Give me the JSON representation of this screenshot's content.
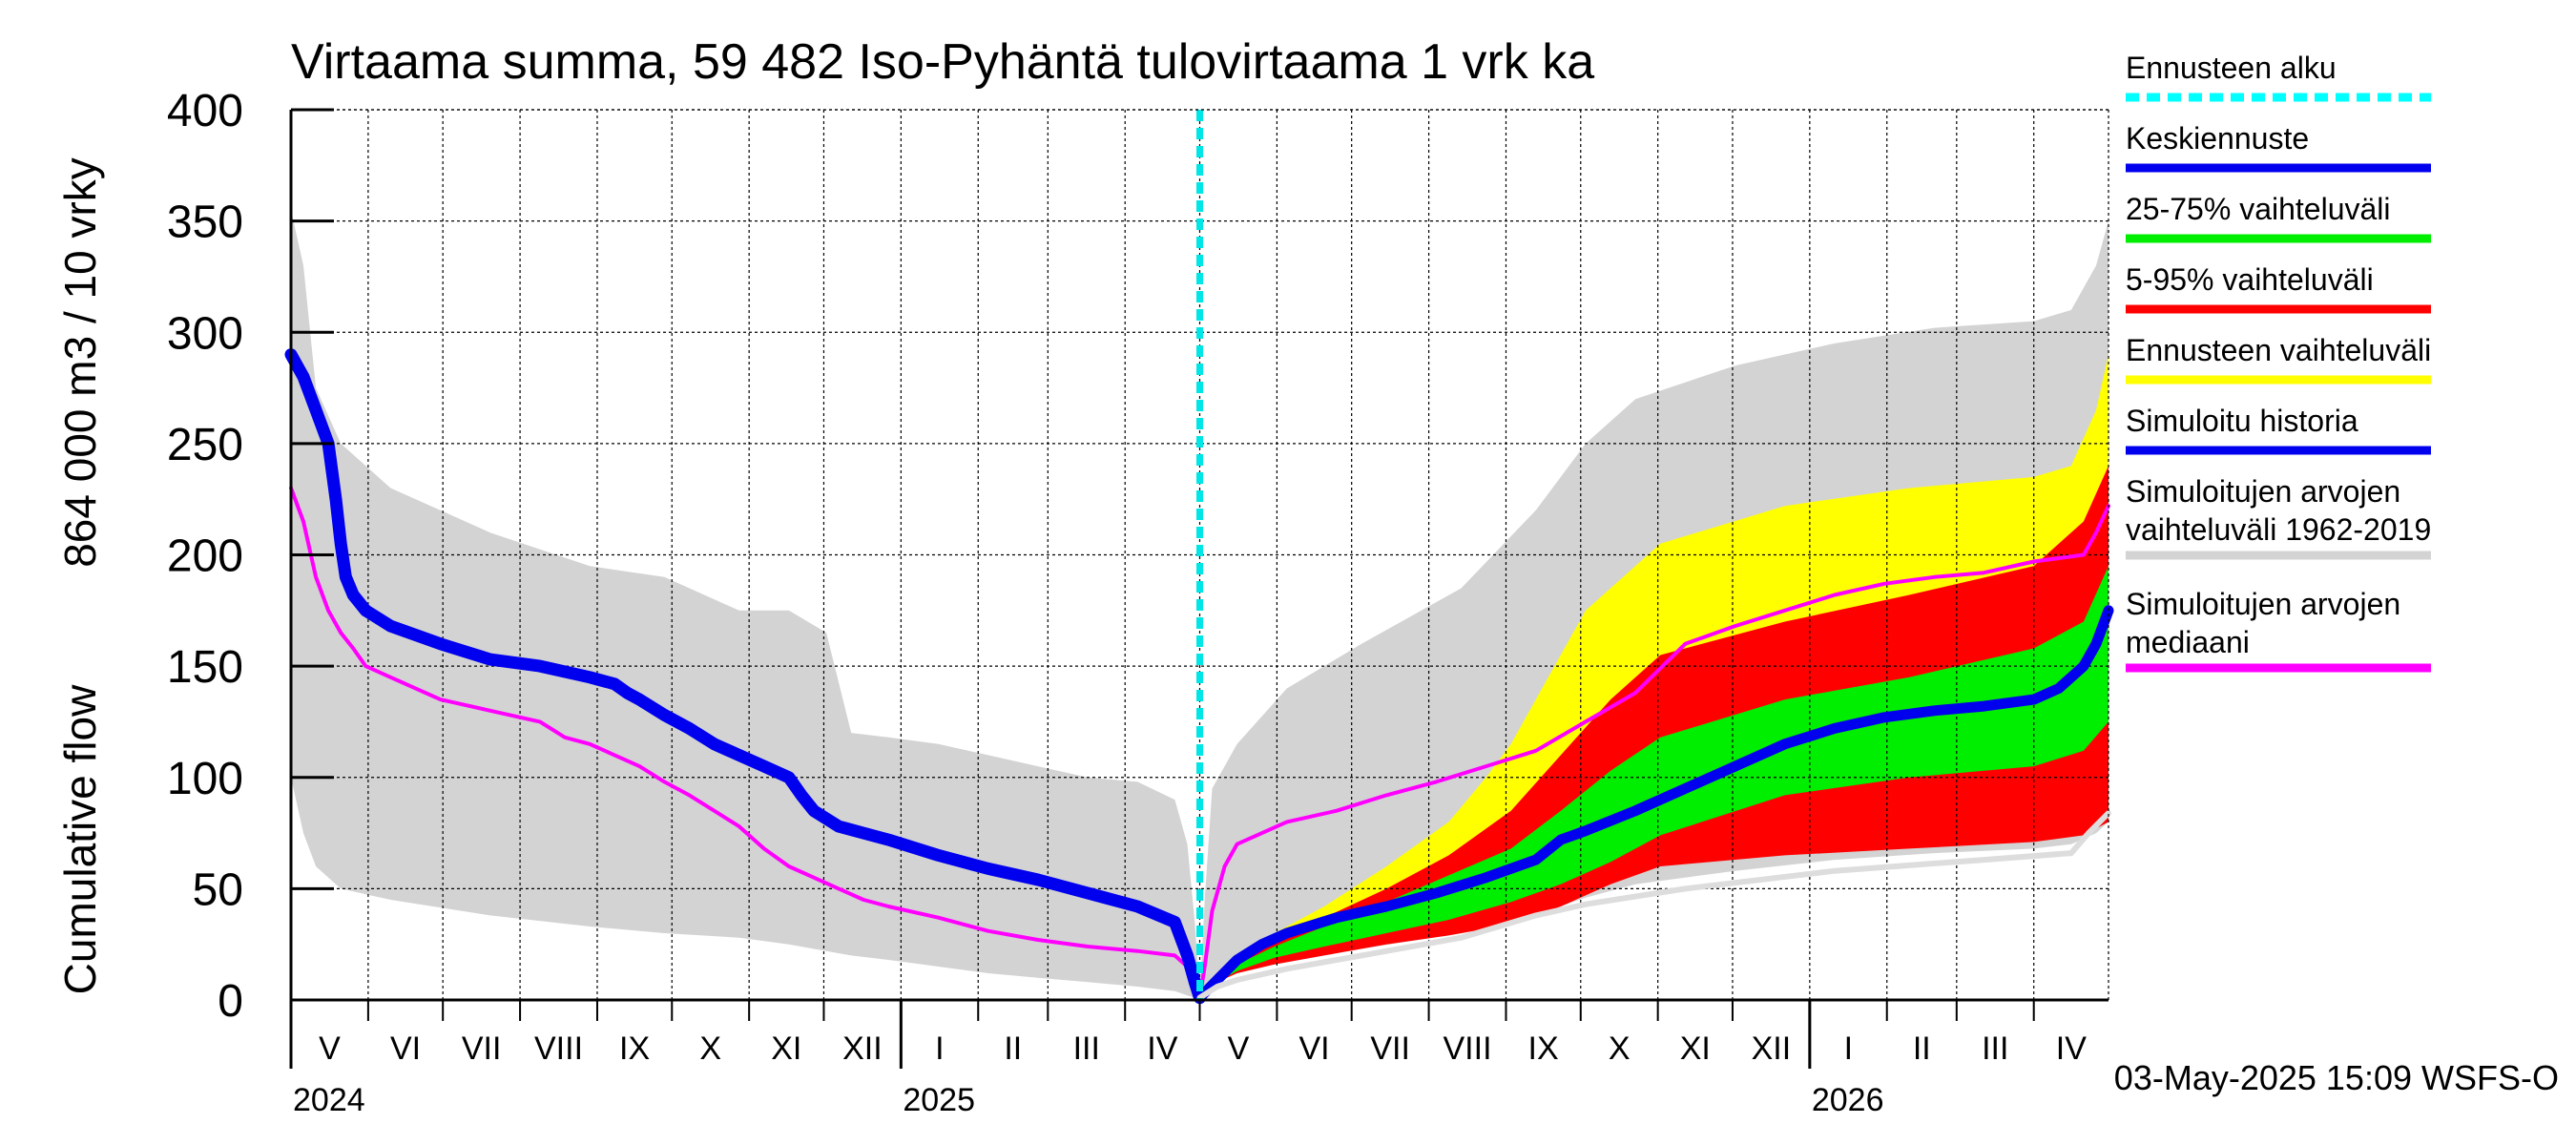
{
  "chart_data": {
    "type": "area",
    "title": "Virtaama summa, 59 482 Iso-Pyhäntä tulovirtaama 1 vrk ka",
    "ylabel_line1": "Cumulative flow",
    "ylabel_line2": "864 000 m3 / 10 vrky",
    "ylim": [
      0,
      400
    ],
    "yticks": [
      0,
      50,
      100,
      150,
      200,
      250,
      300,
      350,
      400
    ],
    "xlim_days": [
      0,
      730
    ],
    "forecast_start_day": 365,
    "months": [
      {
        "label": "V",
        "start": 0,
        "end": 31
      },
      {
        "label": "VI",
        "start": 31,
        "end": 61
      },
      {
        "label": "VII",
        "start": 61,
        "end": 92
      },
      {
        "label": "VIII",
        "start": 92,
        "end": 123
      },
      {
        "label": "IX",
        "start": 123,
        "end": 153
      },
      {
        "label": "X",
        "start": 153,
        "end": 184
      },
      {
        "label": "XI",
        "start": 184,
        "end": 214
      },
      {
        "label": "XII",
        "start": 214,
        "end": 245
      },
      {
        "label": "I",
        "start": 245,
        "end": 276
      },
      {
        "label": "II",
        "start": 276,
        "end": 304
      },
      {
        "label": "III",
        "start": 304,
        "end": 335
      },
      {
        "label": "IV",
        "start": 335,
        "end": 365
      },
      {
        "label": "V",
        "start": 365,
        "end": 396
      },
      {
        "label": "VI",
        "start": 396,
        "end": 426
      },
      {
        "label": "VII",
        "start": 426,
        "end": 457
      },
      {
        "label": "VIII",
        "start": 457,
        "end": 488
      },
      {
        "label": "IX",
        "start": 488,
        "end": 518
      },
      {
        "label": "X",
        "start": 518,
        "end": 549
      },
      {
        "label": "XI",
        "start": 549,
        "end": 579
      },
      {
        "label": "XII",
        "start": 579,
        "end": 610
      },
      {
        "label": "I",
        "start": 610,
        "end": 641
      },
      {
        "label": "II",
        "start": 641,
        "end": 669
      },
      {
        "label": "III",
        "start": 669,
        "end": 700
      },
      {
        "label": "IV",
        "start": 700,
        "end": 730
      }
    ],
    "years": [
      {
        "label": "2024",
        "day": 0
      },
      {
        "label": "2025",
        "day": 245
      },
      {
        "label": "2026",
        "day": 610
      }
    ],
    "series": [
      {
        "name": "hist_range_1",
        "kind": "band",
        "color": "#d3d3d3",
        "x": [
          0,
          5,
          10,
          20,
          40,
          80,
          120,
          150,
          180,
          200,
          215,
          225,
          240,
          260,
          280,
          300,
          320,
          340,
          355,
          360,
          363,
          365,
          367,
          370,
          380,
          400,
          430,
          470,
          500,
          520,
          540,
          580,
          620,
          660,
          700,
          715,
          725,
          730
        ],
        "upper": [
          355,
          330,
          275,
          250,
          230,
          210,
          195,
          190,
          175,
          175,
          165,
          120,
          118,
          115,
          110,
          105,
          100,
          98,
          90,
          70,
          35,
          2,
          45,
          95,
          115,
          140,
          160,
          185,
          220,
          250,
          270,
          285,
          295,
          302,
          305,
          310,
          330,
          350
        ],
        "lower": [
          100,
          75,
          60,
          50,
          45,
          38,
          33,
          30,
          28,
          25,
          22,
          20,
          18,
          15,
          12,
          10,
          8,
          6,
          4,
          2,
          1,
          0,
          5,
          10,
          14,
          18,
          23,
          30,
          38,
          46,
          52,
          58,
          63,
          66,
          68,
          70,
          75,
          80
        ]
      },
      {
        "name": "forecast_range",
        "kind": "band",
        "color": "#ffff00",
        "x": [
          365,
          372,
          380,
          395,
          415,
          440,
          465,
          480,
          490,
          505,
          520,
          550,
          600,
          650,
          700,
          715,
          725,
          730
        ],
        "upper": [
          2,
          10,
          20,
          30,
          42,
          60,
          80,
          100,
          115,
          145,
          175,
          205,
          222,
          230,
          235,
          240,
          265,
          290
        ],
        "lower": [
          0,
          8,
          12,
          17,
          21,
          25,
          30,
          34,
          38,
          46,
          54,
          62,
          68,
          70,
          72,
          75,
          78,
          82
        ]
      },
      {
        "name": "p5_95",
        "kind": "band",
        "color": "#ff0000",
        "x": [
          365,
          372,
          380,
          395,
          415,
          440,
          465,
          490,
          510,
          530,
          550,
          600,
          650,
          700,
          720,
          730
        ],
        "upper": [
          2,
          10,
          18,
          27,
          37,
          50,
          65,
          85,
          110,
          135,
          155,
          170,
          182,
          195,
          215,
          240
        ],
        "lower": [
          0,
          8,
          12,
          16,
          20,
          25,
          29,
          34,
          42,
          52,
          60,
          65,
          68,
          71,
          74,
          80
        ]
      },
      {
        "name": "p25_75",
        "kind": "band",
        "color": "#00ee00",
        "x": [
          365,
          372,
          380,
          395,
          415,
          440,
          465,
          490,
          510,
          530,
          550,
          600,
          650,
          700,
          720,
          730
        ],
        "upper": [
          2,
          9,
          16,
          24,
          33,
          44,
          56,
          68,
          85,
          103,
          118,
          135,
          145,
          158,
          170,
          195
        ],
        "lower": [
          0,
          8,
          13,
          19,
          24,
          30,
          36,
          44,
          52,
          62,
          74,
          92,
          100,
          105,
          112,
          125
        ]
      },
      {
        "name": "hist_median",
        "kind": "line",
        "color": "#ff00ff",
        "width": 4,
        "x": [
          0,
          5,
          10,
          15,
          20,
          25,
          30,
          40,
          60,
          80,
          100,
          110,
          120,
          130,
          140,
          150,
          160,
          170,
          180,
          190,
          200,
          210,
          220,
          230,
          240,
          260,
          280,
          300,
          320,
          340,
          355,
          360,
          363,
          365,
          367,
          370,
          375,
          380,
          390,
          400,
          420,
          440,
          460,
          480,
          500,
          520,
          540,
          560,
          580,
          600,
          620,
          640,
          660,
          680,
          700,
          720,
          725,
          730
        ],
        "y": [
          230,
          215,
          190,
          175,
          165,
          158,
          150,
          145,
          135,
          130,
          125,
          118,
          115,
          110,
          105,
          98,
          92,
          85,
          78,
          68,
          60,
          55,
          50,
          45,
          42,
          37,
          31,
          27,
          24,
          22,
          20,
          15,
          8,
          1,
          15,
          40,
          60,
          70,
          75,
          80,
          85,
          92,
          98,
          105,
          112,
          125,
          138,
          160,
          168,
          175,
          182,
          187,
          190,
          192,
          197,
          200,
          210,
          222
        ]
      },
      {
        "name": "sim_history",
        "kind": "line",
        "color": "#0000ee",
        "width": 13,
        "x": [
          0,
          5,
          10,
          15,
          18,
          20,
          22,
          25,
          30,
          40,
          60,
          80,
          100,
          120,
          130,
          135,
          140,
          150,
          160,
          170,
          180,
          190,
          200,
          205,
          210,
          220,
          230,
          240,
          260,
          280,
          300,
          320,
          340,
          355,
          360,
          363,
          365
        ],
        "y": [
          290,
          280,
          265,
          250,
          225,
          205,
          190,
          182,
          175,
          168,
          160,
          153,
          150,
          145,
          142,
          138,
          135,
          128,
          122,
          115,
          110,
          105,
          100,
          92,
          85,
          78,
          75,
          72,
          65,
          59,
          54,
          48,
          42,
          35,
          20,
          8,
          1
        ]
      },
      {
        "name": "forecast_median",
        "kind": "line",
        "color": "#0000ee",
        "width": 11,
        "x": [
          365,
          372,
          380,
          390,
          400,
          420,
          440,
          460,
          480,
          500,
          510,
          520,
          540,
          560,
          580,
          600,
          620,
          640,
          660,
          680,
          700,
          710,
          720,
          725,
          730
        ],
        "y": [
          1,
          9,
          18,
          25,
          30,
          37,
          42,
          48,
          55,
          63,
          72,
          76,
          85,
          95,
          105,
          115,
          122,
          127,
          130,
          132,
          135,
          140,
          150,
          160,
          175
        ]
      },
      {
        "name": "hist_range_low_line",
        "kind": "line",
        "color": "#dddddd",
        "width": 6,
        "x": [
          365,
          372,
          380,
          400,
          430,
          470,
          500,
          520,
          560,
          620,
          680,
          715,
          722,
          730
        ],
        "y": [
          1,
          6,
          9,
          14,
          20,
          28,
          38,
          43,
          50,
          58,
          63,
          66,
          75,
          84
        ]
      },
      {
        "name": "hist_range_grey",
        "kind": "band",
        "color": "#d3d3d3",
        "x": [],
        "upper": [],
        "lower": []
      }
    ]
  },
  "legend": [
    {
      "label": "Ennusteen alku",
      "color": "#00ffff",
      "style": "dashed"
    },
    {
      "label": "Keskiennuste",
      "color": "#0000ee",
      "style": "solid"
    },
    {
      "label": "25-75% vaihteluväli",
      "color": "#00ee00",
      "style": "solid"
    },
    {
      "label": "5-95% vaihteluväli",
      "color": "#ff0000",
      "style": "solid"
    },
    {
      "label": "Ennusteen vaihteluväli",
      "color": "#ffff00",
      "style": "solid"
    },
    {
      "label": "Simuloitu historia",
      "color": "#0000ee",
      "style": "solid"
    },
    {
      "label": "Simuloitujen arvojen",
      "label2": "vaihteluväli 1962-2019",
      "color": "#d3d3d3",
      "style": "solid"
    },
    {
      "label": "Simuloitujen arvojen",
      "label2": "mediaani",
      "color": "#ff00ff",
      "style": "solid"
    }
  ],
  "footer": "03-May-2025 15:09 WSFS-O"
}
